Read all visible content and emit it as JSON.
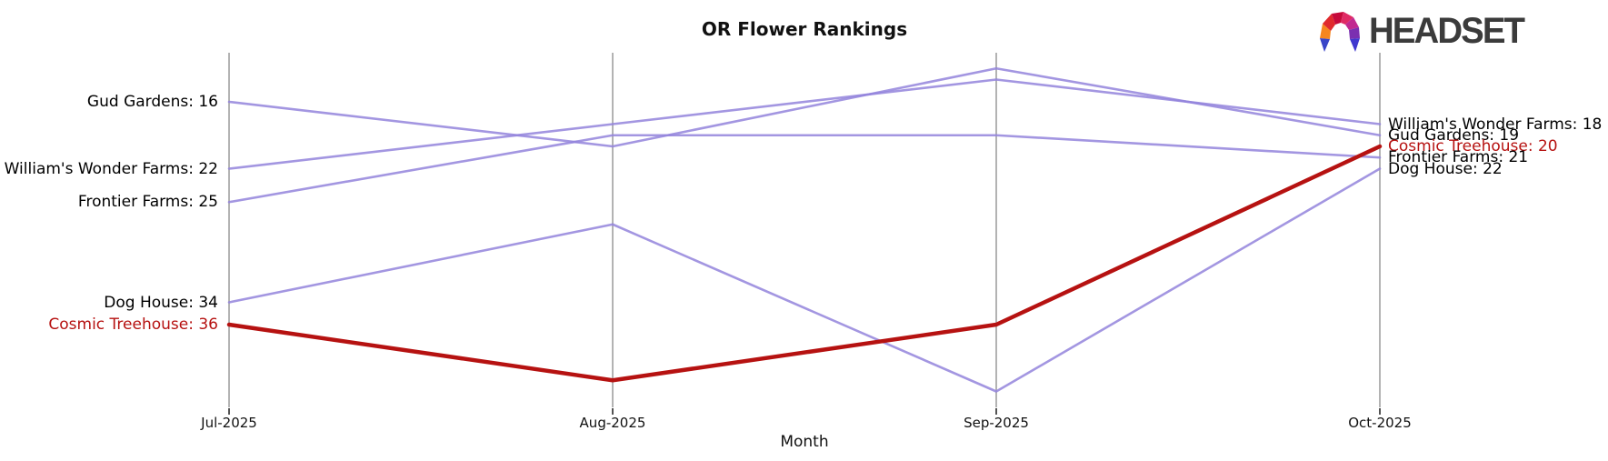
{
  "title": "OR Flower Rankings",
  "logo": {
    "text": "HEADSET",
    "icon": "headset-faceted-arch"
  },
  "colors": {
    "line_purple": "#9384dc",
    "line_highlight": "#b61211",
    "gridline": "#b3b3b3",
    "tick": "#1a1a1a",
    "label_text": "#000000",
    "highlight_text": "#b61211",
    "logo_text": "#3b3b3b"
  },
  "chart_data": {
    "type": "line",
    "variant": "bump-ranking",
    "title": "OR Flower Rankings",
    "xlabel": "Month",
    "x": [
      "Jul-2025",
      "Aug-2025",
      "Sep-2025",
      "Oct-2025"
    ],
    "y_axis": {
      "inverted": true,
      "visible_range": [
        11.5,
        43.5
      ],
      "gridlines": "vertical-only",
      "y_ticks": "none"
    },
    "legend": "none",
    "series": [
      {
        "name": "Gud Gardens",
        "values": [
          16,
          20,
          13,
          19
        ],
        "highlighted": false
      },
      {
        "name": "William's Wonder Farms",
        "values": [
          22,
          18,
          14,
          18
        ],
        "highlighted": false
      },
      {
        "name": "Frontier Farms",
        "values": [
          25,
          19,
          19,
          21
        ],
        "highlighted": false
      },
      {
        "name": "Dog House",
        "values": [
          34,
          27,
          42,
          22
        ],
        "highlighted": false
      },
      {
        "name": "Cosmic Treehouse",
        "values": [
          36,
          41,
          36,
          20
        ],
        "highlighted": true
      }
    ],
    "left_labels": [
      {
        "text": "Gud Gardens: 16",
        "value": 16,
        "highlighted": false
      },
      {
        "text": "William's Wonder Farms: 22",
        "value": 22,
        "highlighted": false
      },
      {
        "text": "Frontier Farms: 25",
        "value": 25,
        "highlighted": false
      },
      {
        "text": "Dog House: 34",
        "value": 34,
        "highlighted": false
      },
      {
        "text": "Cosmic Treehouse: 36",
        "value": 36,
        "highlighted": true
      }
    ],
    "right_labels": [
      {
        "text": "William's Wonder Farms: 18",
        "value": 18,
        "highlighted": false
      },
      {
        "text": "Gud Gardens: 19",
        "value": 19,
        "highlighted": false
      },
      {
        "text": "Cosmic Treehouse: 20",
        "value": 20,
        "highlighted": true
      },
      {
        "text": "Frontier Farms: 21",
        "value": 21,
        "highlighted": false
      },
      {
        "text": "Dog House: 22",
        "value": 22,
        "highlighted": false
      }
    ]
  }
}
